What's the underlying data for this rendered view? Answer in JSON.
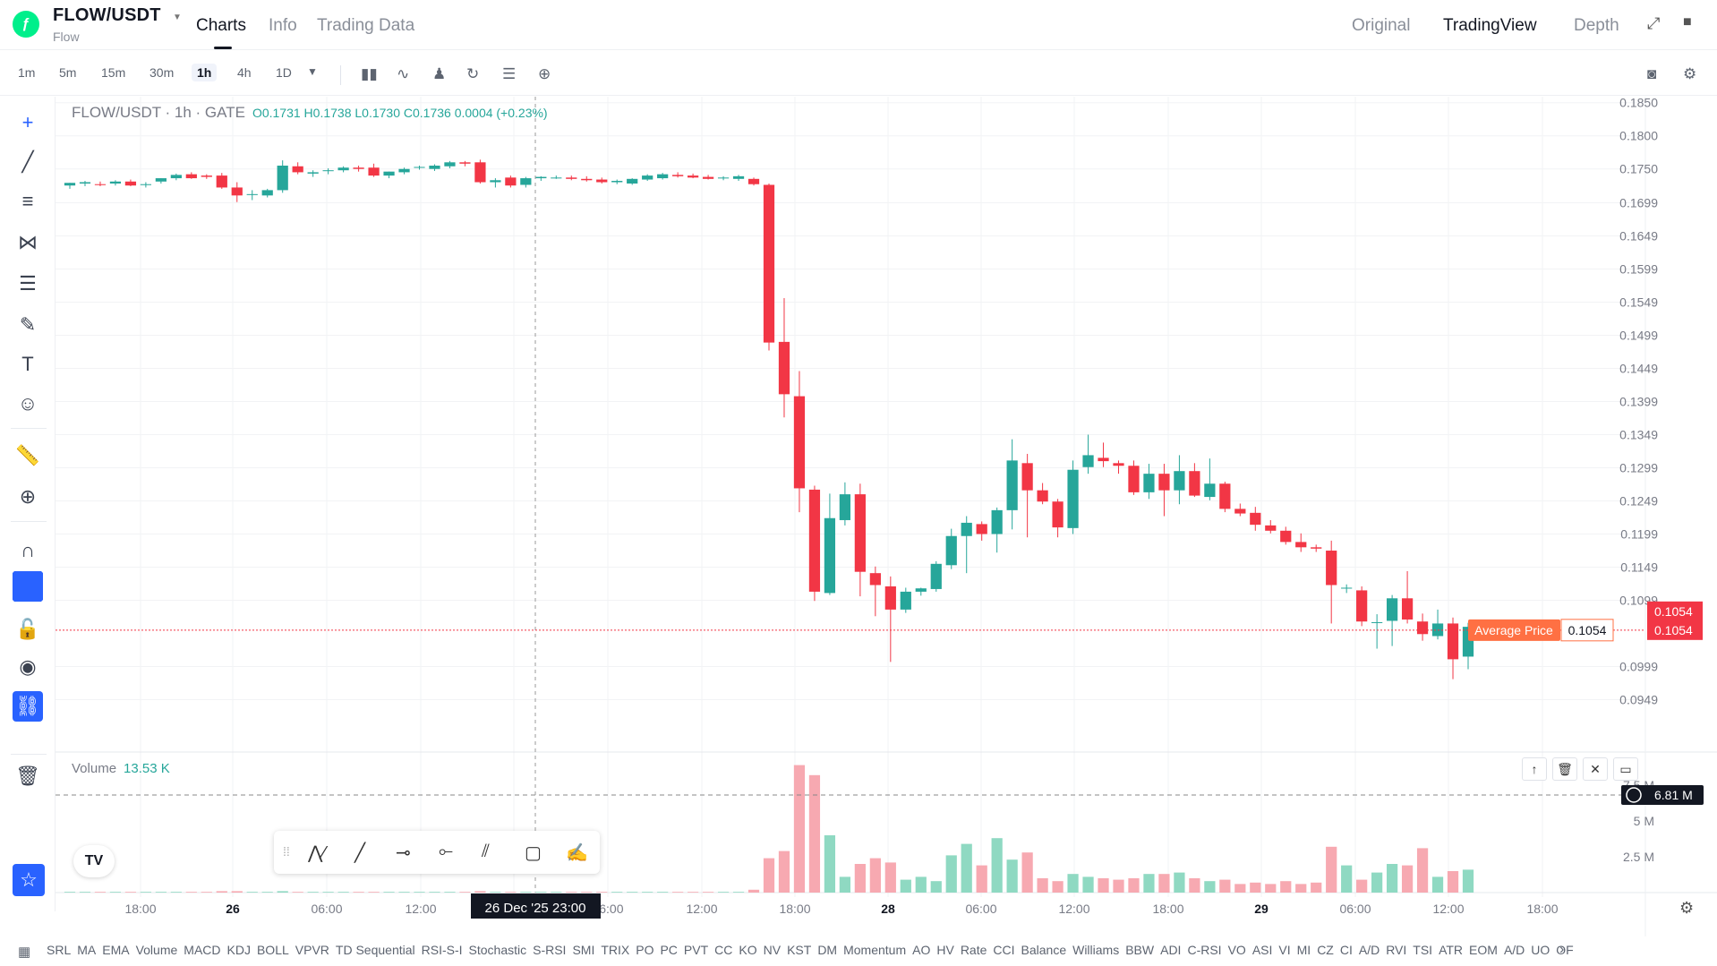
{
  "header": {
    "pair": "FLOW/USDT",
    "pair_sub": "Flow",
    "tabs": [
      "Charts",
      "Info",
      "Trading Data"
    ],
    "right_tabs": [
      "Original",
      "TradingView",
      "Depth"
    ]
  },
  "toolbar": {
    "intervals": [
      "1m",
      "5m",
      "15m",
      "30m",
      "1h",
      "4h",
      "1D"
    ],
    "active_interval": "1h"
  },
  "legend": {
    "title": "FLOW/USDT · 1h · GATE",
    "values": "O0.1731 H0.1738 L0.1730 C0.1736 0.0004 (+0.23%)"
  },
  "volume_legend": {
    "label": "Volume",
    "value": "13.53 K"
  },
  "avg_price": {
    "label": "Average Price",
    "value": "0.1054"
  },
  "price_tags": [
    "0.1054",
    "0.1054"
  ],
  "volume_tag": "6.81 M",
  "crosshair_label": "26 Dec '25   23:00",
  "colors": {
    "up": "#26a69a",
    "down": "#f23645",
    "accent": "#2962ff"
  },
  "indicators": [
    "SRL",
    "MA",
    "EMA",
    "Volume",
    "MACD",
    "KDJ",
    "BOLL",
    "VPVR",
    "TD Sequential",
    "RSI-S-I",
    "Stochastic",
    "S-RSI",
    "SMI",
    "TRIX",
    "PO",
    "PC",
    "PVT",
    "CC",
    "KO",
    "NV",
    "KST",
    "DM",
    "Momentum",
    "AO",
    "HV",
    "Rate",
    "CCI",
    "Balance",
    "Williams",
    "BBW",
    "ADI",
    "C-RSI",
    "VO",
    "ASI",
    "VI",
    "MI",
    "CZ",
    "CI",
    "A/D",
    "RVI",
    "TSI",
    "ATR",
    "EOM",
    "A/D",
    "UO",
    "OF"
  ],
  "chart_data": {
    "type": "candlestick",
    "title": "FLOW/USDT · 1h · GATE",
    "ylim": [
      0.092,
      0.1855
    ],
    "y_ticks": [
      "0.1850",
      "0.1800",
      "0.1750",
      "0.1699",
      "0.1649",
      "0.1599",
      "0.1549",
      "0.1499",
      "0.1449",
      "0.1399",
      "0.1349",
      "0.1299",
      "0.1249",
      "0.1199",
      "0.1149",
      "0.1099",
      "0.0999",
      "0.0949"
    ],
    "x_ticks": [
      "18:00",
      "26",
      "06:00",
      "12:00",
      "18:00",
      "06:00",
      "12:00",
      "18:00",
      "28",
      "06:00",
      "12:00",
      "18:00",
      "29",
      "06:00",
      "12:00",
      "18:00"
    ],
    "volume_ticks": [
      "7.5 M",
      "5 M",
      "2.5 M"
    ],
    "volume_max": 9.0,
    "candles": [
      {
        "o": 0.1725,
        "h": 0.1729,
        "l": 0.172,
        "c": 0.1729,
        "v": 0.05
      },
      {
        "o": 0.1728,
        "h": 0.1732,
        "l": 0.1724,
        "c": 0.173,
        "v": 0.05
      },
      {
        "o": 0.1727,
        "h": 0.1731,
        "l": 0.1724,
        "c": 0.1726,
        "v": 0.05
      },
      {
        "o": 0.1728,
        "h": 0.1733,
        "l": 0.1725,
        "c": 0.1731,
        "v": 0.05
      },
      {
        "o": 0.1731,
        "h": 0.1734,
        "l": 0.1724,
        "c": 0.1725,
        "v": 0.05
      },
      {
        "o": 0.1726,
        "h": 0.173,
        "l": 0.1722,
        "c": 0.1727,
        "v": 0.05
      },
      {
        "o": 0.1731,
        "h": 0.1736,
        "l": 0.1728,
        "c": 0.1736,
        "v": 0.05
      },
      {
        "o": 0.1736,
        "h": 0.1743,
        "l": 0.1733,
        "c": 0.1741,
        "v": 0.05
      },
      {
        "o": 0.1742,
        "h": 0.1745,
        "l": 0.1735,
        "c": 0.1736,
        "v": 0.05
      },
      {
        "o": 0.174,
        "h": 0.1742,
        "l": 0.1735,
        "c": 0.1738,
        "v": 0.05
      },
      {
        "o": 0.174,
        "h": 0.1744,
        "l": 0.172,
        "c": 0.1722,
        "v": 0.1
      },
      {
        "o": 0.1722,
        "h": 0.173,
        "l": 0.17,
        "c": 0.171,
        "v": 0.1
      },
      {
        "o": 0.1712,
        "h": 0.1718,
        "l": 0.1703,
        "c": 0.1712,
        "v": 0.05
      },
      {
        "o": 0.171,
        "h": 0.172,
        "l": 0.1707,
        "c": 0.1718,
        "v": 0.05
      },
      {
        "o": 0.1718,
        "h": 0.1763,
        "l": 0.1714,
        "c": 0.1755,
        "v": 0.1
      },
      {
        "o": 0.1754,
        "h": 0.176,
        "l": 0.1742,
        "c": 0.1745,
        "v": 0.05
      },
      {
        "o": 0.1743,
        "h": 0.1748,
        "l": 0.1738,
        "c": 0.1745,
        "v": 0.05
      },
      {
        "o": 0.1747,
        "h": 0.1751,
        "l": 0.1742,
        "c": 0.1748,
        "v": 0.05
      },
      {
        "o": 0.1748,
        "h": 0.1754,
        "l": 0.1745,
        "c": 0.1752,
        "v": 0.05
      },
      {
        "o": 0.1752,
        "h": 0.1755,
        "l": 0.1746,
        "c": 0.175,
        "v": 0.05
      },
      {
        "o": 0.1752,
        "h": 0.1758,
        "l": 0.1738,
        "c": 0.174,
        "v": 0.05
      },
      {
        "o": 0.174,
        "h": 0.1746,
        "l": 0.1736,
        "c": 0.1746,
        "v": 0.05
      },
      {
        "o": 0.1745,
        "h": 0.1752,
        "l": 0.1742,
        "c": 0.175,
        "v": 0.05
      },
      {
        "o": 0.1752,
        "h": 0.1755,
        "l": 0.1749,
        "c": 0.1753,
        "v": 0.05
      },
      {
        "o": 0.175,
        "h": 0.1757,
        "l": 0.1747,
        "c": 0.1755,
        "v": 0.05
      },
      {
        "o": 0.1754,
        "h": 0.1762,
        "l": 0.1751,
        "c": 0.176,
        "v": 0.05
      },
      {
        "o": 0.176,
        "h": 0.1762,
        "l": 0.1754,
        "c": 0.1758,
        "v": 0.05
      },
      {
        "o": 0.176,
        "h": 0.1764,
        "l": 0.1728,
        "c": 0.173,
        "v": 0.1
      },
      {
        "o": 0.173,
        "h": 0.1736,
        "l": 0.1722,
        "c": 0.1733,
        "v": 0.05
      },
      {
        "o": 0.1737,
        "h": 0.174,
        "l": 0.1722,
        "c": 0.1725,
        "v": 0.05
      },
      {
        "o": 0.1726,
        "h": 0.1738,
        "l": 0.1722,
        "c": 0.1736,
        "v": 0.05
      },
      {
        "o": 0.1736,
        "h": 0.1739,
        "l": 0.1732,
        "c": 0.1738,
        "v": 0.05
      },
      {
        "o": 0.1737,
        "h": 0.174,
        "l": 0.1735,
        "c": 0.1737,
        "v": 0.05
      },
      {
        "o": 0.1737,
        "h": 0.174,
        "l": 0.1733,
        "c": 0.1735,
        "v": 0.05
      },
      {
        "o": 0.1735,
        "h": 0.1739,
        "l": 0.1731,
        "c": 0.1733,
        "v": 0.05
      },
      {
        "o": 0.1734,
        "h": 0.1737,
        "l": 0.1728,
        "c": 0.173,
        "v": 0.05
      },
      {
        "o": 0.173,
        "h": 0.1734,
        "l": 0.1727,
        "c": 0.1732,
        "v": 0.05
      },
      {
        "o": 0.1728,
        "h": 0.1736,
        "l": 0.1726,
        "c": 0.1735,
        "v": 0.05
      },
      {
        "o": 0.1734,
        "h": 0.1742,
        "l": 0.1732,
        "c": 0.174,
        "v": 0.05
      },
      {
        "o": 0.1736,
        "h": 0.1744,
        "l": 0.1734,
        "c": 0.1742,
        "v": 0.05
      },
      {
        "o": 0.1741,
        "h": 0.1745,
        "l": 0.1737,
        "c": 0.1739,
        "v": 0.05
      },
      {
        "o": 0.174,
        "h": 0.1743,
        "l": 0.1736,
        "c": 0.1737,
        "v": 0.05
      },
      {
        "o": 0.1738,
        "h": 0.1741,
        "l": 0.1734,
        "c": 0.1735,
        "v": 0.05
      },
      {
        "o": 0.1736,
        "h": 0.1739,
        "l": 0.1733,
        "c": 0.1737,
        "v": 0.05
      },
      {
        "o": 0.1735,
        "h": 0.1741,
        "l": 0.1732,
        "c": 0.1739,
        "v": 0.05
      },
      {
        "o": 0.1735,
        "h": 0.1737,
        "l": 0.1725,
        "c": 0.1727,
        "v": 0.2
      },
      {
        "o": 0.1726,
        "h": 0.1728,
        "l": 0.1476,
        "c": 0.1488,
        "v": 2.4
      },
      {
        "o": 0.1489,
        "h": 0.1555,
        "l": 0.1375,
        "c": 0.141,
        "v": 2.9
      },
      {
        "o": 0.1407,
        "h": 0.1445,
        "l": 0.1232,
        "c": 0.1268,
        "v": 8.9
      },
      {
        "o": 0.1266,
        "h": 0.1272,
        "l": 0.1098,
        "c": 0.1112,
        "v": 8.2
      },
      {
        "o": 0.111,
        "h": 0.126,
        "l": 0.1107,
        "c": 0.1223,
        "v": 4.0
      },
      {
        "o": 0.122,
        "h": 0.1277,
        "l": 0.1212,
        "c": 0.1259,
        "v": 1.1
      },
      {
        "o": 0.1259,
        "h": 0.1275,
        "l": 0.1105,
        "c": 0.1142,
        "v": 2.0
      },
      {
        "o": 0.114,
        "h": 0.115,
        "l": 0.1075,
        "c": 0.1122,
        "v": 2.4
      },
      {
        "o": 0.112,
        "h": 0.1135,
        "l": 0.1006,
        "c": 0.1085,
        "v": 2.1
      },
      {
        "o": 0.1085,
        "h": 0.1118,
        "l": 0.108,
        "c": 0.1112,
        "v": 0.9
      },
      {
        "o": 0.1112,
        "h": 0.1118,
        "l": 0.1106,
        "c": 0.1117,
        "v": 1.1
      },
      {
        "o": 0.1116,
        "h": 0.1158,
        "l": 0.1112,
        "c": 0.1154,
        "v": 0.8
      },
      {
        "o": 0.1152,
        "h": 0.1207,
        "l": 0.1146,
        "c": 0.1196,
        "v": 2.6
      },
      {
        "o": 0.1196,
        "h": 0.1226,
        "l": 0.114,
        "c": 0.1216,
        "v": 3.4
      },
      {
        "o": 0.1214,
        "h": 0.1218,
        "l": 0.1189,
        "c": 0.1199,
        "v": 1.9
      },
      {
        "o": 0.1199,
        "h": 0.1239,
        "l": 0.1171,
        "c": 0.1235,
        "v": 3.8
      },
      {
        "o": 0.1235,
        "h": 0.1342,
        "l": 0.1206,
        "c": 0.131,
        "v": 2.3
      },
      {
        "o": 0.1306,
        "h": 0.132,
        "l": 0.1194,
        "c": 0.1265,
        "v": 2.8
      },
      {
        "o": 0.1265,
        "h": 0.1276,
        "l": 0.1244,
        "c": 0.1248,
        "v": 1.0
      },
      {
        "o": 0.1248,
        "h": 0.1252,
        "l": 0.1194,
        "c": 0.1209,
        "v": 0.8
      },
      {
        "o": 0.1208,
        "h": 0.131,
        "l": 0.1199,
        "c": 0.1296,
        "v": 1.3
      },
      {
        "o": 0.13,
        "h": 0.1349,
        "l": 0.129,
        "c": 0.1318,
        "v": 1.1
      },
      {
        "o": 0.1314,
        "h": 0.1337,
        "l": 0.13,
        "c": 0.1309,
        "v": 1.0
      },
      {
        "o": 0.1306,
        "h": 0.131,
        "l": 0.129,
        "c": 0.1302,
        "v": 0.9
      },
      {
        "o": 0.1302,
        "h": 0.131,
        "l": 0.1258,
        "c": 0.1262,
        "v": 1.0
      },
      {
        "o": 0.1262,
        "h": 0.1305,
        "l": 0.1252,
        "c": 0.129,
        "v": 1.3
      },
      {
        "o": 0.129,
        "h": 0.1305,
        "l": 0.1226,
        "c": 0.1265,
        "v": 1.3
      },
      {
        "o": 0.1265,
        "h": 0.1318,
        "l": 0.1244,
        "c": 0.1294,
        "v": 1.4
      },
      {
        "o": 0.1294,
        "h": 0.1306,
        "l": 0.1255,
        "c": 0.1257,
        "v": 1.0
      },
      {
        "o": 0.1255,
        "h": 0.1313,
        "l": 0.125,
        "c": 0.1275,
        "v": 0.8
      },
      {
        "o": 0.1275,
        "h": 0.1278,
        "l": 0.1232,
        "c": 0.1237,
        "v": 0.9
      },
      {
        "o": 0.1237,
        "h": 0.1245,
        "l": 0.1226,
        "c": 0.123,
        "v": 0.6
      },
      {
        "o": 0.1231,
        "h": 0.124,
        "l": 0.1204,
        "c": 0.1213,
        "v": 0.7
      },
      {
        "o": 0.1212,
        "h": 0.122,
        "l": 0.12,
        "c": 0.1204,
        "v": 0.6
      },
      {
        "o": 0.1204,
        "h": 0.121,
        "l": 0.1183,
        "c": 0.1187,
        "v": 0.8
      },
      {
        "o": 0.1187,
        "h": 0.12,
        "l": 0.1172,
        "c": 0.1179,
        "v": 0.6
      },
      {
        "o": 0.1179,
        "h": 0.1183,
        "l": 0.1172,
        "c": 0.1177,
        "v": 0.7
      },
      {
        "o": 0.1174,
        "h": 0.1189,
        "l": 0.1064,
        "c": 0.1122,
        "v": 3.2
      },
      {
        "o": 0.1117,
        "h": 0.1123,
        "l": 0.111,
        "c": 0.1118,
        "v": 1.9
      },
      {
        "o": 0.1114,
        "h": 0.112,
        "l": 0.106,
        "c": 0.1067,
        "v": 0.9
      },
      {
        "o": 0.1065,
        "h": 0.1078,
        "l": 0.1026,
        "c": 0.1066,
        "v": 1.4
      },
      {
        "o": 0.1068,
        "h": 0.1107,
        "l": 0.103,
        "c": 0.1102,
        "v": 2.0
      },
      {
        "o": 0.1102,
        "h": 0.1143,
        "l": 0.1064,
        "c": 0.107,
        "v": 1.9
      },
      {
        "o": 0.1067,
        "h": 0.1079,
        "l": 0.1038,
        "c": 0.1048,
        "v": 3.1
      },
      {
        "o": 0.1045,
        "h": 0.1085,
        "l": 0.104,
        "c": 0.1064,
        "v": 1.1
      },
      {
        "o": 0.1064,
        "h": 0.1073,
        "l": 0.098,
        "c": 0.101,
        "v": 1.5
      },
      {
        "o": 0.1014,
        "h": 0.1065,
        "l": 0.0995,
        "c": 0.1059,
        "v": 1.6
      }
    ]
  }
}
